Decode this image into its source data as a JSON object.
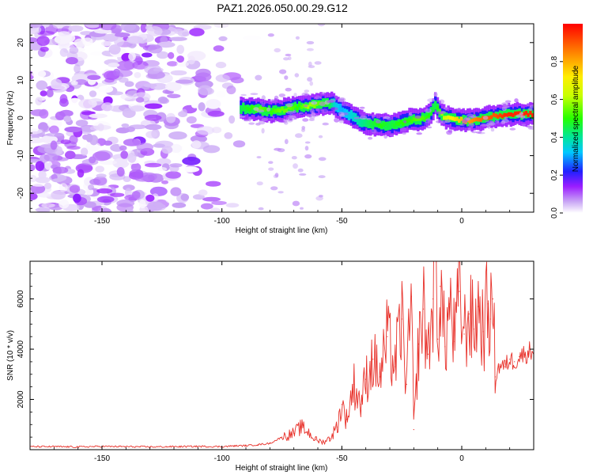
{
  "figure": {
    "title": "PAZ1.2026.050.00.29.G12"
  },
  "chart_data": [
    {
      "type": "heatmap",
      "title": "",
      "xlabel": "Height of straight line (km)",
      "ylabel": "Frequency (Hz)",
      "xlim": [
        -180,
        30
      ],
      "ylim": [
        -25,
        25
      ],
      "xticks": [
        -150,
        -100,
        -50,
        0
      ],
      "xtick_labels": [
        "-150",
        "-100",
        "-50",
        "0"
      ],
      "yticks": [
        -20,
        -10,
        0,
        10,
        20
      ],
      "ytick_labels": [
        "-20",
        "-10",
        "0",
        "10",
        "20"
      ],
      "ridge": {
        "x": [
          -92,
          -88,
          -84,
          -80,
          -76,
          -72,
          -68,
          -64,
          -60,
          -56,
          -53,
          -50,
          -46,
          -42,
          -38,
          -34,
          -30,
          -26,
          -22,
          -18,
          -14,
          -11,
          -8,
          -5,
          -2,
          2,
          6,
          10,
          14,
          18,
          22,
          26,
          30
        ],
        "frequency": [
          2.5,
          2.5,
          2.2,
          1.8,
          2.0,
          2.5,
          3.0,
          3.2,
          3.5,
          3.8,
          3.6,
          2.0,
          0.5,
          -1.0,
          -1.5,
          -1.8,
          -2.0,
          -1.5,
          -0.5,
          -0.5,
          0.5,
          3.5,
          0.5,
          0.0,
          -0.5,
          -0.8,
          -0.5,
          0.0,
          0.5,
          0.8,
          1.0,
          1.0,
          1.0
        ],
        "amplitude": [
          0.45,
          0.5,
          0.55,
          0.5,
          0.55,
          0.55,
          0.5,
          0.6,
          0.55,
          0.5,
          0.35,
          0.3,
          0.35,
          0.4,
          0.45,
          0.5,
          0.45,
          0.5,
          0.5,
          0.55,
          0.5,
          0.45,
          0.6,
          0.7,
          0.75,
          0.8,
          0.85,
          0.9,
          0.9,
          0.95,
          0.95,
          0.95,
          0.95
        ]
      },
      "noise_region": {
        "x_range": [
          -180,
          -85
        ],
        "amplitude_range": [
          0.0,
          0.12
        ]
      },
      "colorbar": {
        "label": "Normalized spectral amplitude",
        "range": [
          0.0,
          1.0
        ],
        "ticks": [
          0.0,
          0.2,
          0.4,
          0.6,
          0.8
        ],
        "tick_labels": [
          "0.0",
          "0.2",
          "0.4",
          "0.6",
          "0.8"
        ]
      }
    },
    {
      "type": "line",
      "title": "",
      "xlabel": "Height of straight line (km)",
      "ylabel": "SNR (10 * v/v)",
      "xlim": [
        -180,
        30
      ],
      "ylim": [
        0,
        7500
      ],
      "xticks": [
        -150,
        -100,
        -50,
        0
      ],
      "xtick_labels": [
        "-150",
        "-100",
        "-50",
        "0"
      ],
      "yticks": [
        2000,
        4000,
        6000
      ],
      "ytick_labels": [
        "2000",
        "4000",
        "6000"
      ],
      "series": [
        {
          "name": "SNR",
          "color": "#e8312a",
          "x": [
            -180,
            -170,
            -160,
            -150,
            -140,
            -130,
            -120,
            -110,
            -100,
            -95,
            -90,
            -85,
            -80,
            -75,
            -70,
            -67,
            -64,
            -61,
            -58,
            -55,
            -52,
            -50,
            -48,
            -45,
            -42,
            -40,
            -37,
            -34,
            -31,
            -28,
            -25,
            -23,
            -21,
            -20,
            -18,
            -16,
            -14,
            -12,
            -11,
            -10,
            -9,
            -7,
            -5,
            -3,
            -1,
            1,
            3,
            5,
            7,
            9,
            11,
            12,
            13,
            14,
            16,
            18,
            20,
            22,
            24,
            26,
            28,
            30
          ],
          "y": [
            120,
            120,
            110,
            130,
            120,
            110,
            120,
            130,
            120,
            150,
            160,
            200,
            250,
            500,
            650,
            900,
            700,
            400,
            300,
            450,
            900,
            1800,
            1200,
            2600,
            1800,
            2800,
            3600,
            2900,
            4500,
            3300,
            5200,
            2600,
            6100,
            800,
            4200,
            5600,
            3800,
            6000,
            7600,
            4400,
            6500,
            4100,
            5800,
            4300,
            6300,
            4600,
            5400,
            4800,
            5700,
            4700,
            5800,
            5200,
            6000,
            2900,
            3400,
            3300,
            3600,
            3500,
            3700,
            3800,
            3900,
            4000
          ]
        }
      ]
    }
  ]
}
